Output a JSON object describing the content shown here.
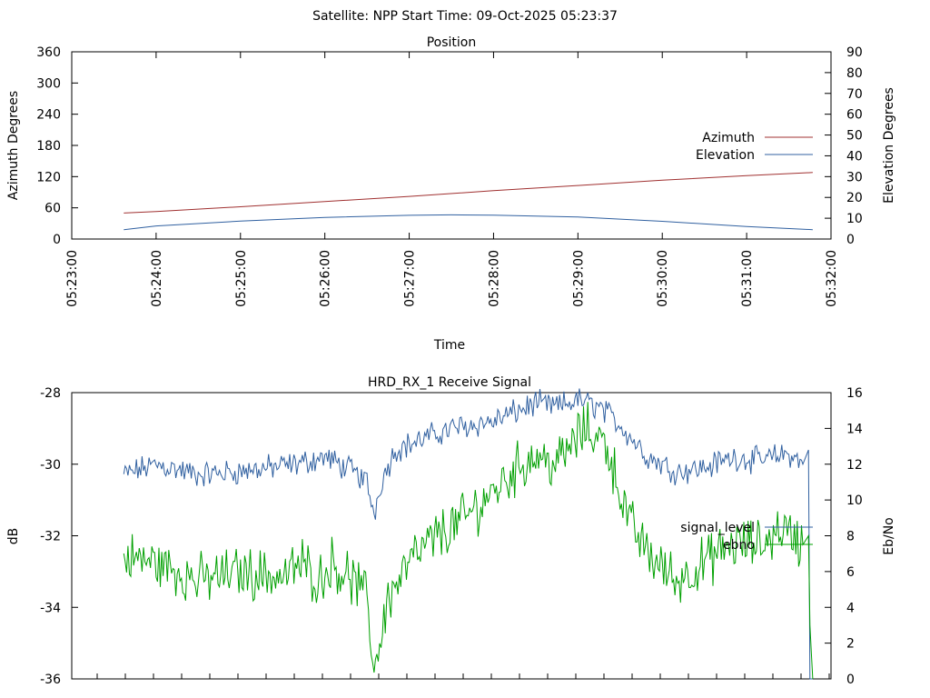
{
  "header": {
    "text": "Satellite: NPP    Start Time: 09-Oct-2025 05:23:37"
  },
  "chart_data": [
    {
      "type": "line",
      "title": "Position",
      "xlabel": "Time",
      "ylabel": "Azimuth Degrees",
      "y2label": "Elevation Degrees",
      "x_ticks": [
        "05:23:00",
        "05:24:00",
        "05:25:00",
        "05:26:00",
        "05:27:00",
        "05:28:00",
        "05:29:00",
        "05:30:00",
        "05:31:00",
        "05:32:00"
      ],
      "xlim": [
        0,
        540
      ],
      "ylim": [
        0,
        360
      ],
      "y_ticks": [
        "0",
        "60",
        "120",
        "180",
        "240",
        "300",
        "360"
      ],
      "y2lim": [
        0,
        90
      ],
      "y2_ticks": [
        "0",
        "10",
        "20",
        "30",
        "40",
        "50",
        "60",
        "70",
        "80",
        "90"
      ],
      "legend_position": "right",
      "series": [
        {
          "name": "Azimuth",
          "axis": "y",
          "color": "#a03030",
          "x": [
            37,
            60,
            120,
            180,
            240,
            300,
            360,
            420,
            480,
            527
          ],
          "values": [
            50,
            53,
            62,
            72,
            82,
            93,
            103,
            113,
            122,
            128
          ]
        },
        {
          "name": "Elevation",
          "axis": "y2",
          "color": "#3060a0",
          "x": [
            37,
            60,
            120,
            180,
            240,
            270,
            300,
            360,
            420,
            480,
            527
          ],
          "values": [
            4.5,
            6.3,
            8.6,
            10.4,
            11.4,
            11.6,
            11.5,
            10.6,
            8.5,
            6.0,
            4.5
          ]
        }
      ]
    },
    {
      "type": "line",
      "title": "HRD_RX_1 Receive Signal",
      "xlabel": "",
      "ylabel": "dB",
      "y2label": "Eb/No",
      "xlim": [
        0,
        540
      ],
      "ylim": [
        -36,
        -28
      ],
      "y_ticks": [
        "-28",
        "-30",
        "-32",
        "-34",
        "-36"
      ],
      "y2lim": [
        0,
        16
      ],
      "y2_ticks": [
        "0",
        "2",
        "4",
        "6",
        "8",
        "10",
        "12",
        "14",
        "16"
      ],
      "legend_position": "right",
      "series": [
        {
          "name": "signal_level",
          "axis": "y",
          "color": "#3060a0",
          "x": [
            37,
            60,
            90,
            120,
            160,
            180,
            200,
            210,
            215,
            220,
            230,
            250,
            270,
            300,
            330,
            345,
            360,
            375,
            390,
            410,
            430,
            450,
            470,
            490,
            510,
            520,
            524,
            525,
            527
          ],
          "values": [
            -30.3,
            -30.0,
            -30.3,
            -30.2,
            -30.0,
            -29.8,
            -30.2,
            -30.5,
            -31.4,
            -30.5,
            -29.6,
            -29.3,
            -29.0,
            -28.8,
            -28.3,
            -28.4,
            -28.2,
            -28.4,
            -28.9,
            -29.8,
            -30.2,
            -30.1,
            -29.8,
            -29.9,
            -29.7,
            -30.0,
            -29.6,
            -36.0,
            -36.0
          ]
        },
        {
          "name": "ebno",
          "axis": "y2",
          "color": "#00a000",
          "x": [
            37,
            60,
            90,
            120,
            150,
            165,
            175,
            185,
            200,
            210,
            215,
            225,
            240,
            260,
            280,
            300,
            320,
            330,
            345,
            355,
            365,
            380,
            390,
            395,
            410,
            430,
            450,
            470,
            490,
            505,
            520,
            524,
            525,
            527
          ],
          "values": [
            6.8,
            6.5,
            5.5,
            6.0,
            5.7,
            6.5,
            5.5,
            6.5,
            5.5,
            4.5,
            0.5,
            4.5,
            6.5,
            8.0,
            9.0,
            10.5,
            12.0,
            12.5,
            12.0,
            13.0,
            14.0,
            13.2,
            10.5,
            9.0,
            7.0,
            5.5,
            6.5,
            7.5,
            7.5,
            8.5,
            7.5,
            8.0,
            3.0,
            0.0
          ]
        }
      ]
    }
  ]
}
